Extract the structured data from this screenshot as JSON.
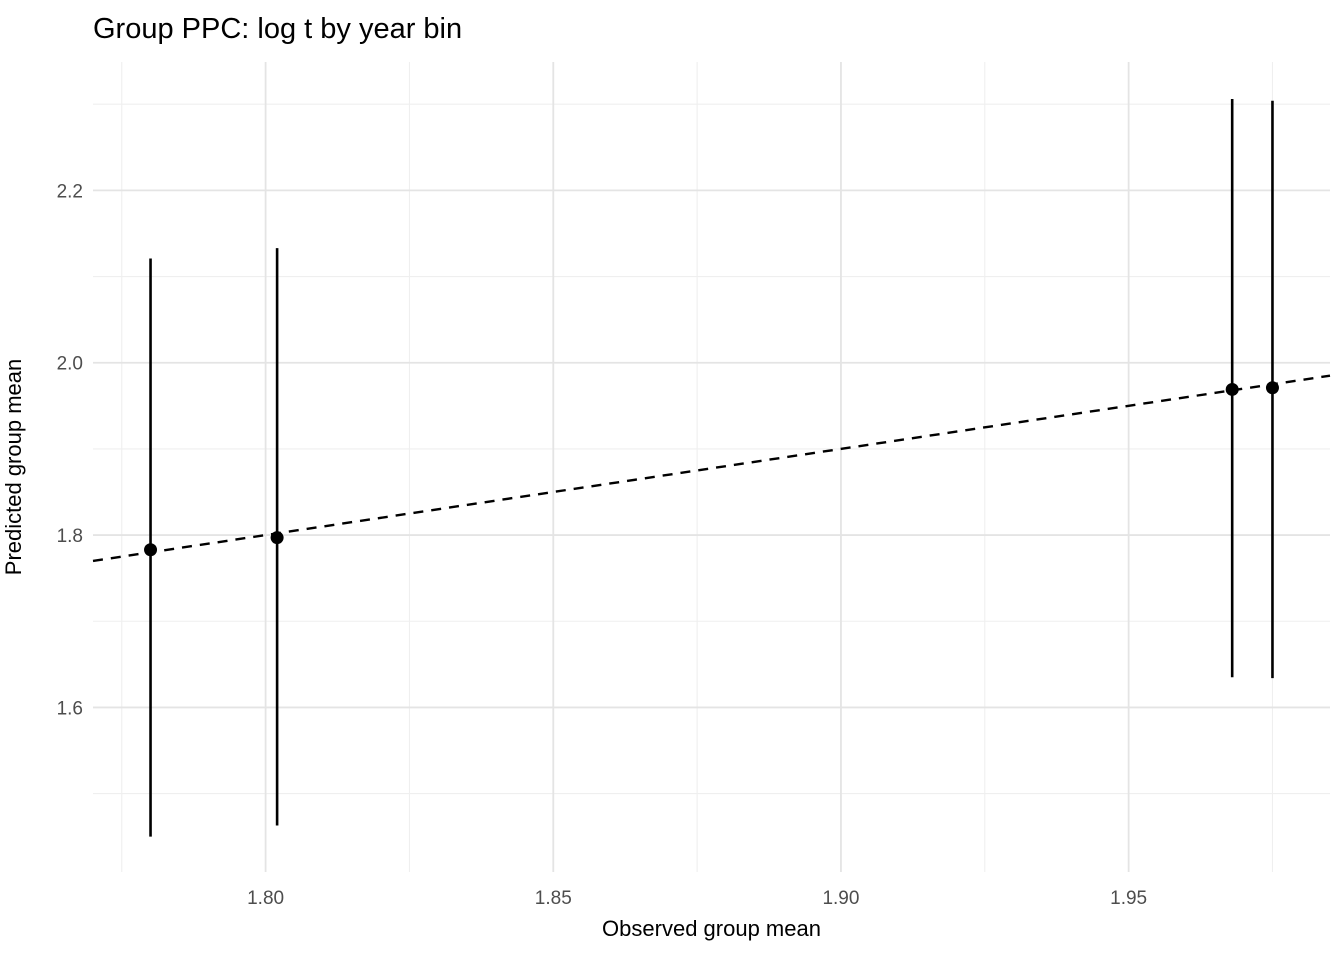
{
  "chart_data": {
    "type": "scatter",
    "title": "Group PPC: log t by year bin",
    "xlabel": "Observed group mean",
    "ylabel": "Predicted group mean",
    "xlim": [
      1.77,
      1.985
    ],
    "ylim": [
      1.409,
      2.349
    ],
    "x_major_ticks": [
      {
        "value": 1.8,
        "label": "1.80"
      },
      {
        "value": 1.85,
        "label": "1.85"
      },
      {
        "value": 1.9,
        "label": "1.90"
      },
      {
        "value": 1.95,
        "label": "1.95"
      }
    ],
    "x_minor_ticks": [
      1.775,
      1.825,
      1.875,
      1.925,
      1.975
    ],
    "y_major_ticks": [
      {
        "value": 1.6,
        "label": "1.6"
      },
      {
        "value": 1.8,
        "label": "1.8"
      },
      {
        "value": 2.0,
        "label": "2.0"
      },
      {
        "value": 2.2,
        "label": "2.2"
      }
    ],
    "y_minor_ticks": [
      1.5,
      1.7,
      1.9,
      2.1,
      2.3
    ],
    "grid": {
      "major": true,
      "minor": true,
      "background": "white"
    },
    "legend": "none",
    "reference_line": {
      "slope": 1,
      "intercept": 0,
      "style": "dashed",
      "meaning": "identity y = x"
    },
    "points": [
      {
        "x": 1.78,
        "y": 1.783,
        "lower": 1.45,
        "upper": 2.121
      },
      {
        "x": 1.802,
        "y": 1.797,
        "lower": 1.463,
        "upper": 2.133
      },
      {
        "x": 1.968,
        "y": 1.969,
        "lower": 1.635,
        "upper": 2.306
      },
      {
        "x": 1.975,
        "y": 1.971,
        "lower": 1.634,
        "upper": 2.304
      }
    ],
    "colors": {
      "background": "#ffffff",
      "point": "#000000",
      "error_bar": "#000000",
      "reference_line": "#000000",
      "grid_major": "#e4e4e4",
      "grid_minor": "#efefef",
      "tick_label": "#4d4d4d",
      "axis_title": "#000000",
      "title": "#000000"
    }
  }
}
